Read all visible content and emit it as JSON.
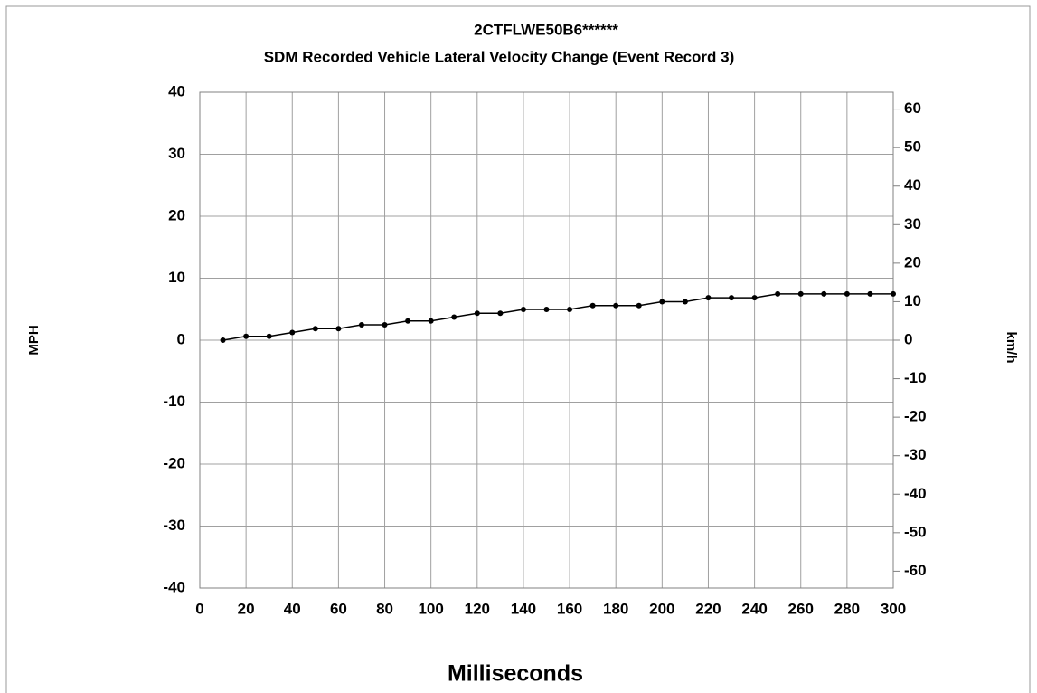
{
  "chart_data": {
    "type": "line",
    "title": "2CTFLWE50B6******",
    "subtitle": "SDM Recorded Vehicle Lateral Velocity Change (Event Record 3)",
    "xlabel": "Milliseconds",
    "ylabel": "MPH",
    "y2label": "km/h",
    "x": [
      10,
      20,
      30,
      40,
      50,
      60,
      70,
      80,
      90,
      100,
      110,
      120,
      130,
      140,
      150,
      160,
      170,
      180,
      190,
      200,
      210,
      220,
      230,
      240,
      250,
      260,
      270,
      280,
      290,
      300
    ],
    "series": [
      {
        "name": "Lateral Velocity Change",
        "color": "#000000",
        "values": [
          0,
          0.62,
          0.62,
          1.24,
          1.86,
          1.86,
          2.48,
          2.48,
          3.1,
          3.1,
          3.73,
          4.35,
          4.35,
          4.97,
          4.97,
          4.97,
          5.59,
          5.59,
          5.59,
          6.21,
          6.21,
          6.84,
          6.84,
          6.84,
          7.46,
          7.46,
          7.46,
          7.46,
          7.46,
          7.46
        ]
      }
    ],
    "xlim": [
      0,
      300
    ],
    "xticks": [
      0,
      20,
      40,
      60,
      80,
      100,
      120,
      140,
      160,
      180,
      200,
      220,
      240,
      260,
      280,
      300
    ],
    "ylim": [
      -40,
      40
    ],
    "yticks": [
      -40,
      -30,
      -20,
      -10,
      0,
      10,
      20,
      30,
      40
    ],
    "y2lim": [
      -64.37,
      64.37
    ],
    "y2ticks": [
      -60,
      -50,
      -40,
      -30,
      -20,
      -10,
      0,
      10,
      20,
      30,
      40,
      50,
      60
    ],
    "grid": true
  }
}
